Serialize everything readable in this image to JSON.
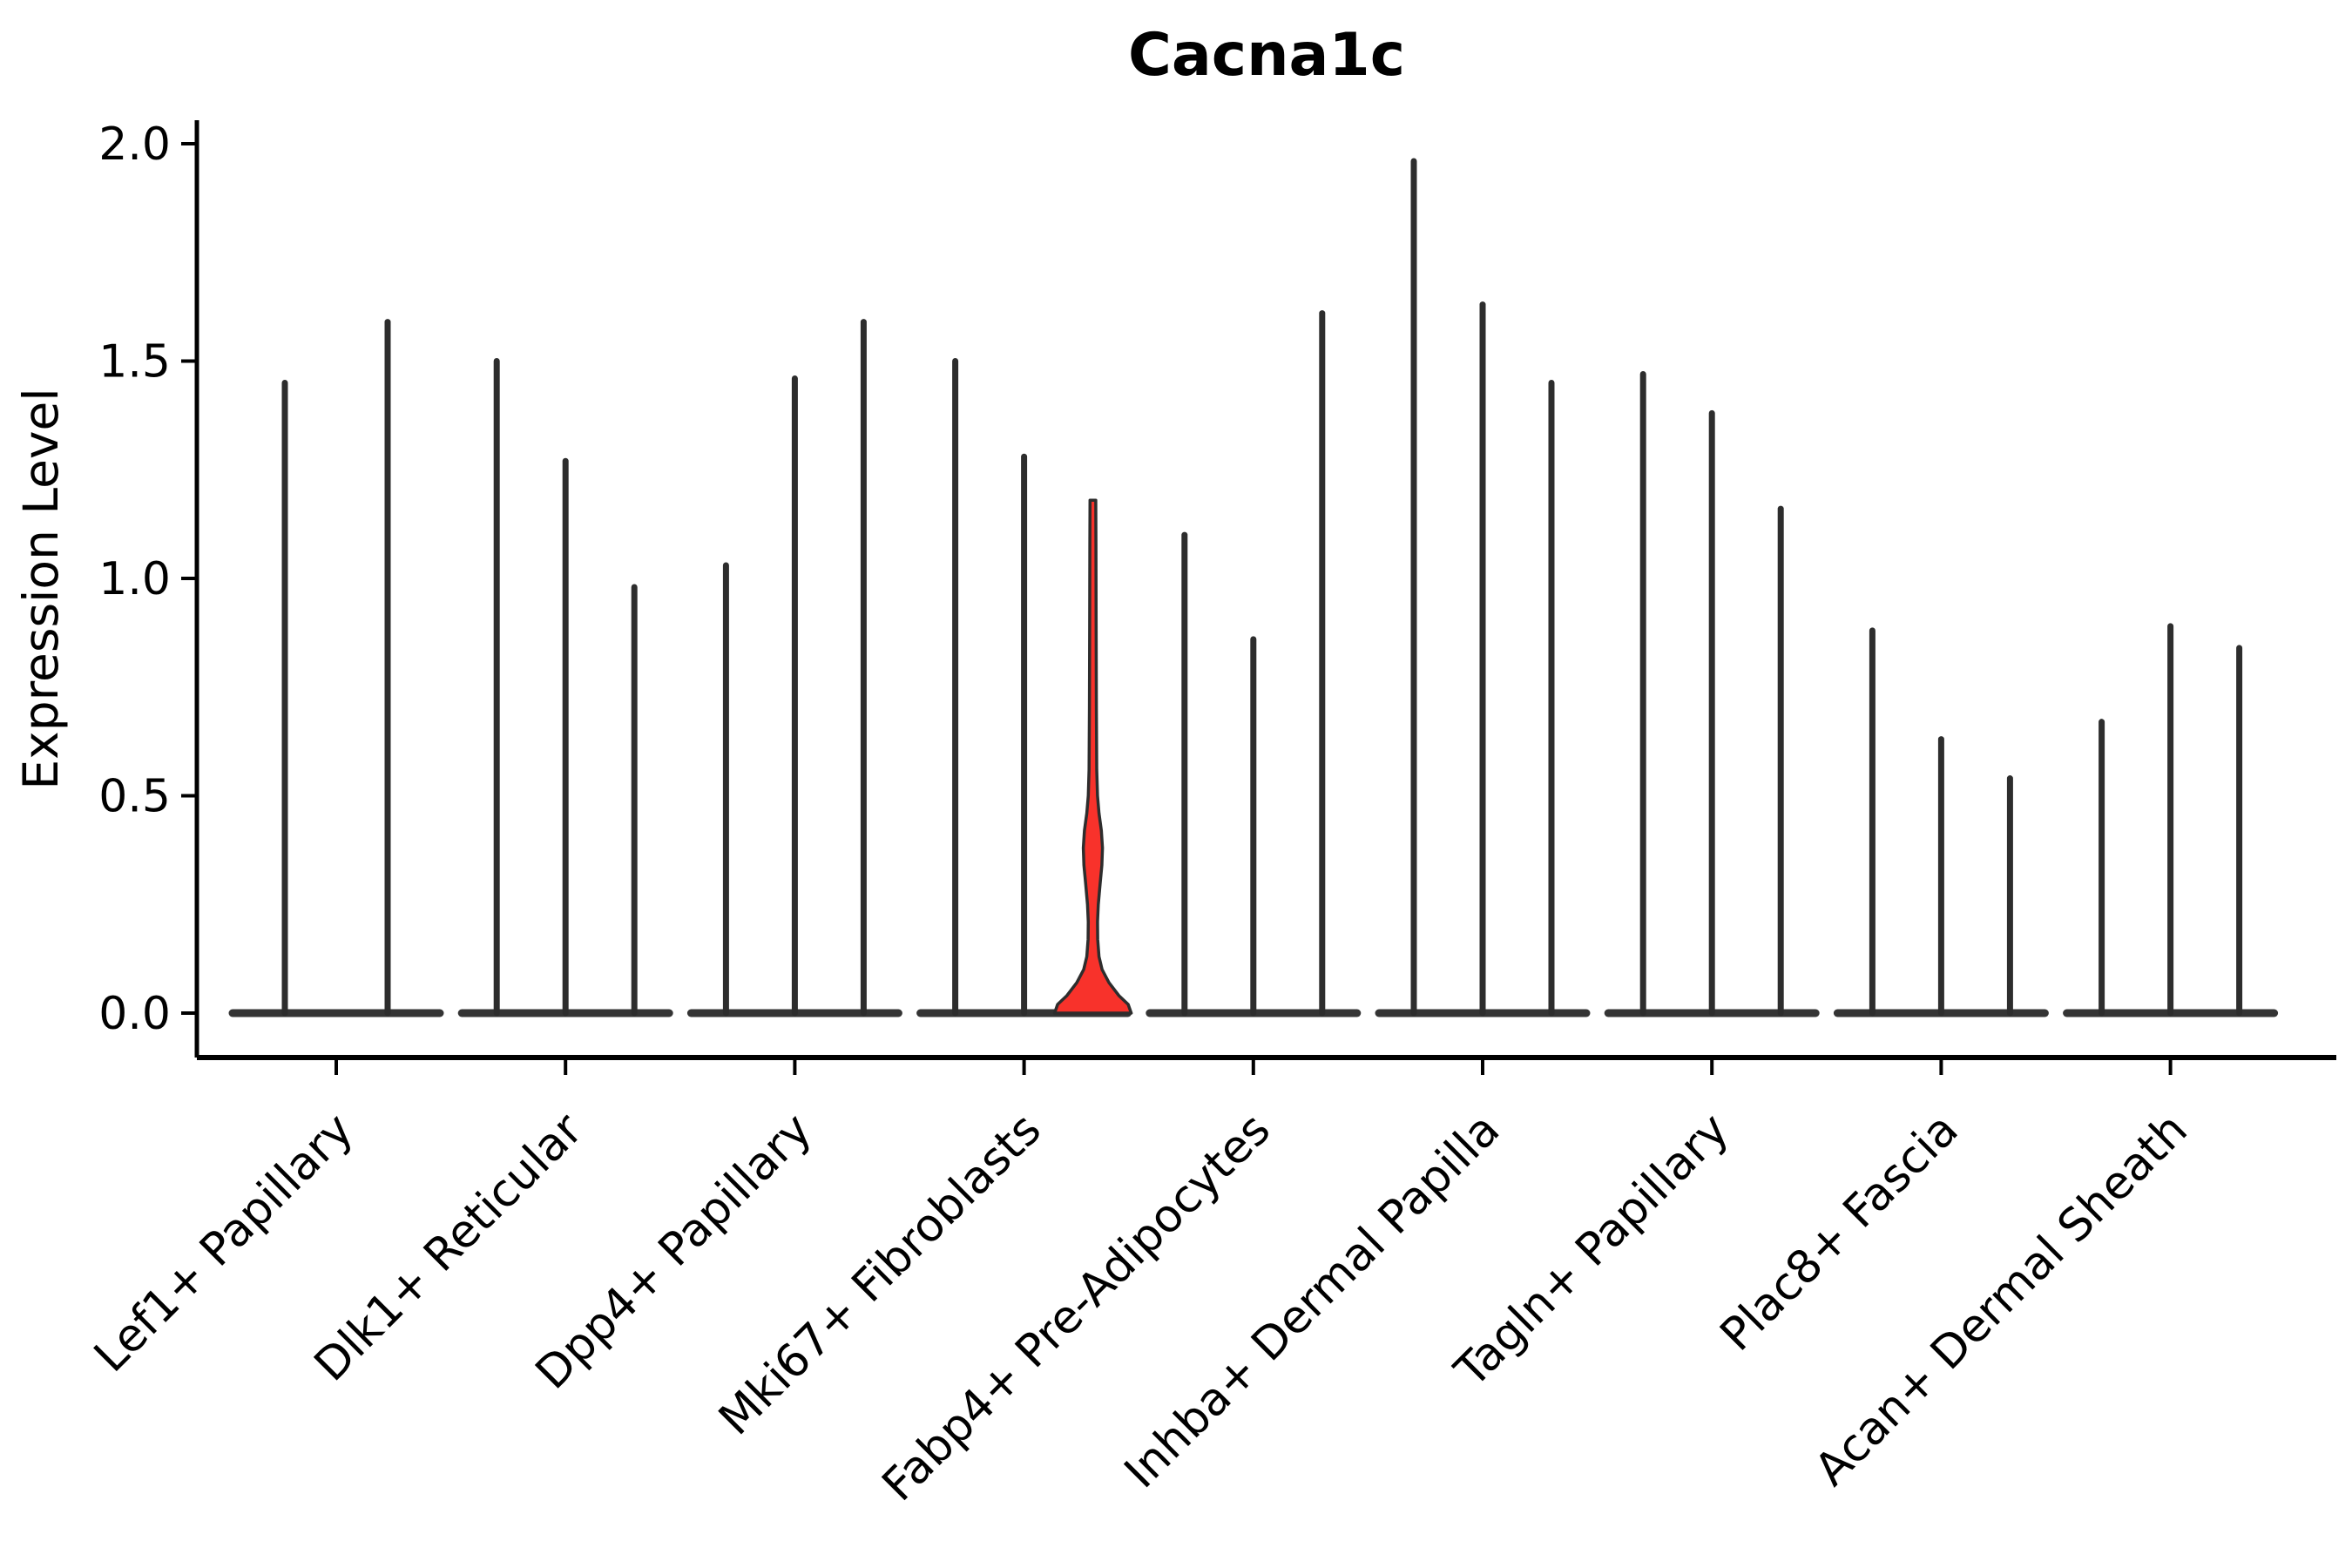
{
  "title": "Cacna1c",
  "ylabel": "Expression Level",
  "background": "#ffffff",
  "colors": {
    "axis": "#000000",
    "violin_edge": "#2d2d2d",
    "baseline": "#343434",
    "highlight_fill": "#f8322b",
    "text": "#000000"
  },
  "ytick_labels": [
    "0.0",
    "0.5",
    "1.0",
    "1.5",
    "2.0"
  ],
  "chart_data": {
    "type": "violin",
    "title": "Cacna1c",
    "xlabel": "",
    "ylabel": "Expression Level",
    "ylim": [
      0,
      2.06
    ],
    "yticks": [
      0.0,
      0.5,
      1.0,
      1.5,
      2.0
    ],
    "grid": false,
    "legend": false,
    "x_tick_rotation": 45,
    "note": "Stacked-violin style plot; nearly all violins collapse to thin spikes at 0 with max-value whiskers; one highlighted red violin shows visible density.",
    "groups": [
      {
        "label": "Lef1+ Papillary",
        "violin_max": [
          1.45,
          1.59
        ]
      },
      {
        "label": "Dlk1+ Reticular",
        "violin_max": [
          1.5,
          1.27,
          0.98
        ]
      },
      {
        "label": "Dpp4+ Papillary",
        "violin_max": [
          1.03,
          1.46,
          1.59
        ]
      },
      {
        "label": "Mki67+ Fibroblasts",
        "violin_max": [
          1.5,
          1.28,
          1.18
        ],
        "highlight_index": 2
      },
      {
        "label": "Fabp4+ Pre-Adipocytes",
        "violin_max": [
          1.1,
          0.86,
          1.61
        ]
      },
      {
        "label": "Inhba+ Dermal Papilla",
        "violin_max": [
          1.96,
          1.63,
          1.45
        ]
      },
      {
        "label": "Tagln+ Papillary",
        "violin_max": [
          1.47,
          1.38,
          1.16
        ]
      },
      {
        "label": "Plac8+ Fascia",
        "violin_max": [
          0.88,
          0.63,
          0.54
        ]
      },
      {
        "label": "Acan+ Dermal Sheath",
        "violin_max": [
          0.67,
          0.89,
          0.84
        ]
      }
    ],
    "highlight": {
      "group": "Mki67+ Fibroblasts",
      "violin_position": 3,
      "fill": "#f8322b",
      "max": 1.18,
      "density_profile": [
        [
          0.0,
          1.0
        ],
        [
          0.02,
          0.92
        ],
        [
          0.04,
          0.68
        ],
        [
          0.07,
          0.42
        ],
        [
          0.1,
          0.24
        ],
        [
          0.13,
          0.16
        ],
        [
          0.17,
          0.125
        ],
        [
          0.21,
          0.12
        ],
        [
          0.25,
          0.14
        ],
        [
          0.3,
          0.19
        ],
        [
          0.34,
          0.235
        ],
        [
          0.38,
          0.25
        ],
        [
          0.42,
          0.22
        ],
        [
          0.46,
          0.16
        ],
        [
          0.5,
          0.12
        ],
        [
          0.56,
          0.1
        ],
        [
          0.7,
          0.09
        ],
        [
          0.9,
          0.085
        ],
        [
          1.08,
          0.08
        ],
        [
          1.18,
          0.075
        ]
      ]
    }
  }
}
